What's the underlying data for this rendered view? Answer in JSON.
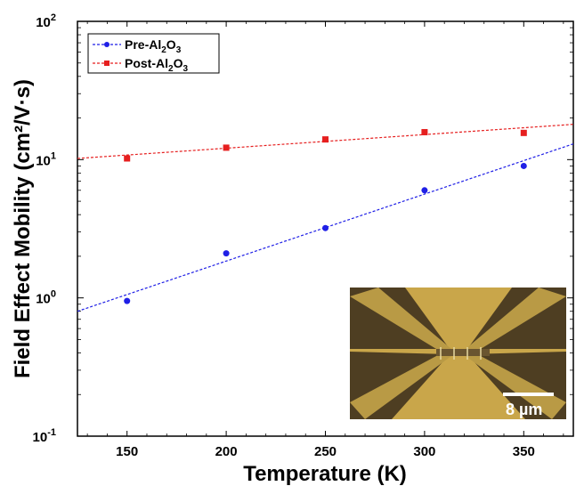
{
  "chart_data": {
    "type": "scatter",
    "xlabel": "Temperature (K)",
    "ylabel": "Field Effect Mobility (cm²/V·s)",
    "xlim": [
      125,
      375
    ],
    "ylim": [
      0.1,
      100
    ],
    "yscale": "log",
    "xticks": [
      "150",
      "200",
      "250",
      "300",
      "350"
    ],
    "yticks": [
      {
        "base": "10",
        "exp": "-1",
        "value": 0.1
      },
      {
        "base": "10",
        "exp": "0",
        "value": 1
      },
      {
        "base": "10",
        "exp": "1",
        "value": 10
      },
      {
        "base": "10",
        "exp": "2",
        "value": 100
      }
    ],
    "legend_position": "top-left",
    "series": [
      {
        "name": "Pre-Al2O3",
        "legend": {
          "pre": "Pre-Al",
          "sub1": "2",
          "mid": "O",
          "sub2": "3"
        },
        "color": "#1f1fe6",
        "marker": "circle",
        "x": [
          150,
          200,
          250,
          300,
          350
        ],
        "y": [
          0.95,
          2.1,
          3.2,
          6.0,
          9.0
        ],
        "fit": {
          "x": [
            125,
            375
          ],
          "y": [
            0.8,
            13.0
          ]
        }
      },
      {
        "name": "Post-Al2O3",
        "legend": {
          "pre": "Post-Al",
          "sub1": "2",
          "mid": "O",
          "sub2": "3"
        },
        "color": "#e61f1f",
        "marker": "square",
        "x": [
          150,
          200,
          250,
          300,
          350
        ],
        "y": [
          10.2,
          12.2,
          14.0,
          15.8,
          15.6
        ],
        "fit": {
          "x": [
            125,
            375
          ],
          "y": [
            10.2,
            18.0
          ]
        }
      }
    ],
    "inset": {
      "scale_bar_label": "8 µm"
    }
  }
}
